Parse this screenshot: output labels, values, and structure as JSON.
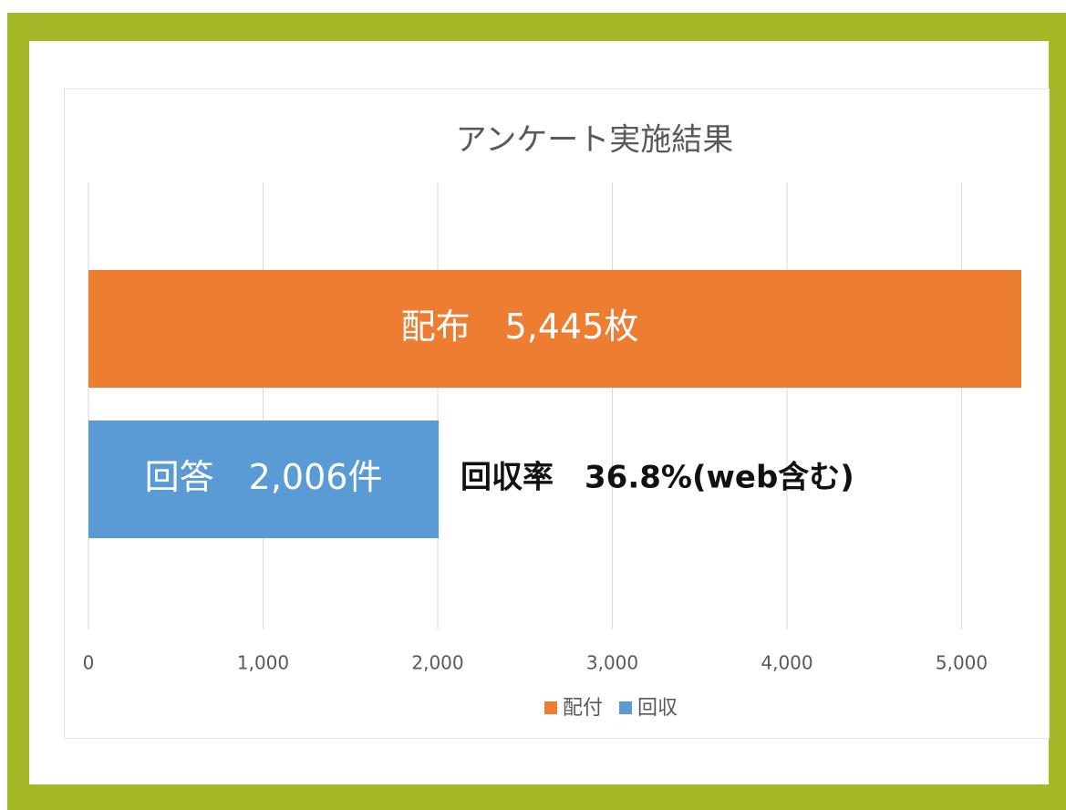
{
  "chart_data": {
    "type": "hbar",
    "title": "アンケート実施結果",
    "categories": [
      null
    ],
    "series": [
      {
        "name": "配付",
        "color": "#ed7d31",
        "values": [
          5445
        ],
        "value_labels": [
          "配布　5,445枚"
        ]
      },
      {
        "name": "回収",
        "color": "#5b9bd5",
        "values": [
          2006
        ],
        "value_labels": [
          "回答　2,006件"
        ]
      }
    ],
    "annotation": "回収率　36.8%(web含む)",
    "xlim": [
      0,
      5342
    ],
    "xticks": [
      0,
      {
        "value": 1000,
        "label": "1,000"
      },
      {
        "value": 2000,
        "label": "2,000"
      },
      {
        "value": 3000,
        "label": "3,000"
      },
      {
        "value": 4000,
        "label": "4,000"
      },
      {
        "value": 5000,
        "label": "5,000"
      }
    ],
    "grid": true,
    "legend": "bottom"
  }
}
